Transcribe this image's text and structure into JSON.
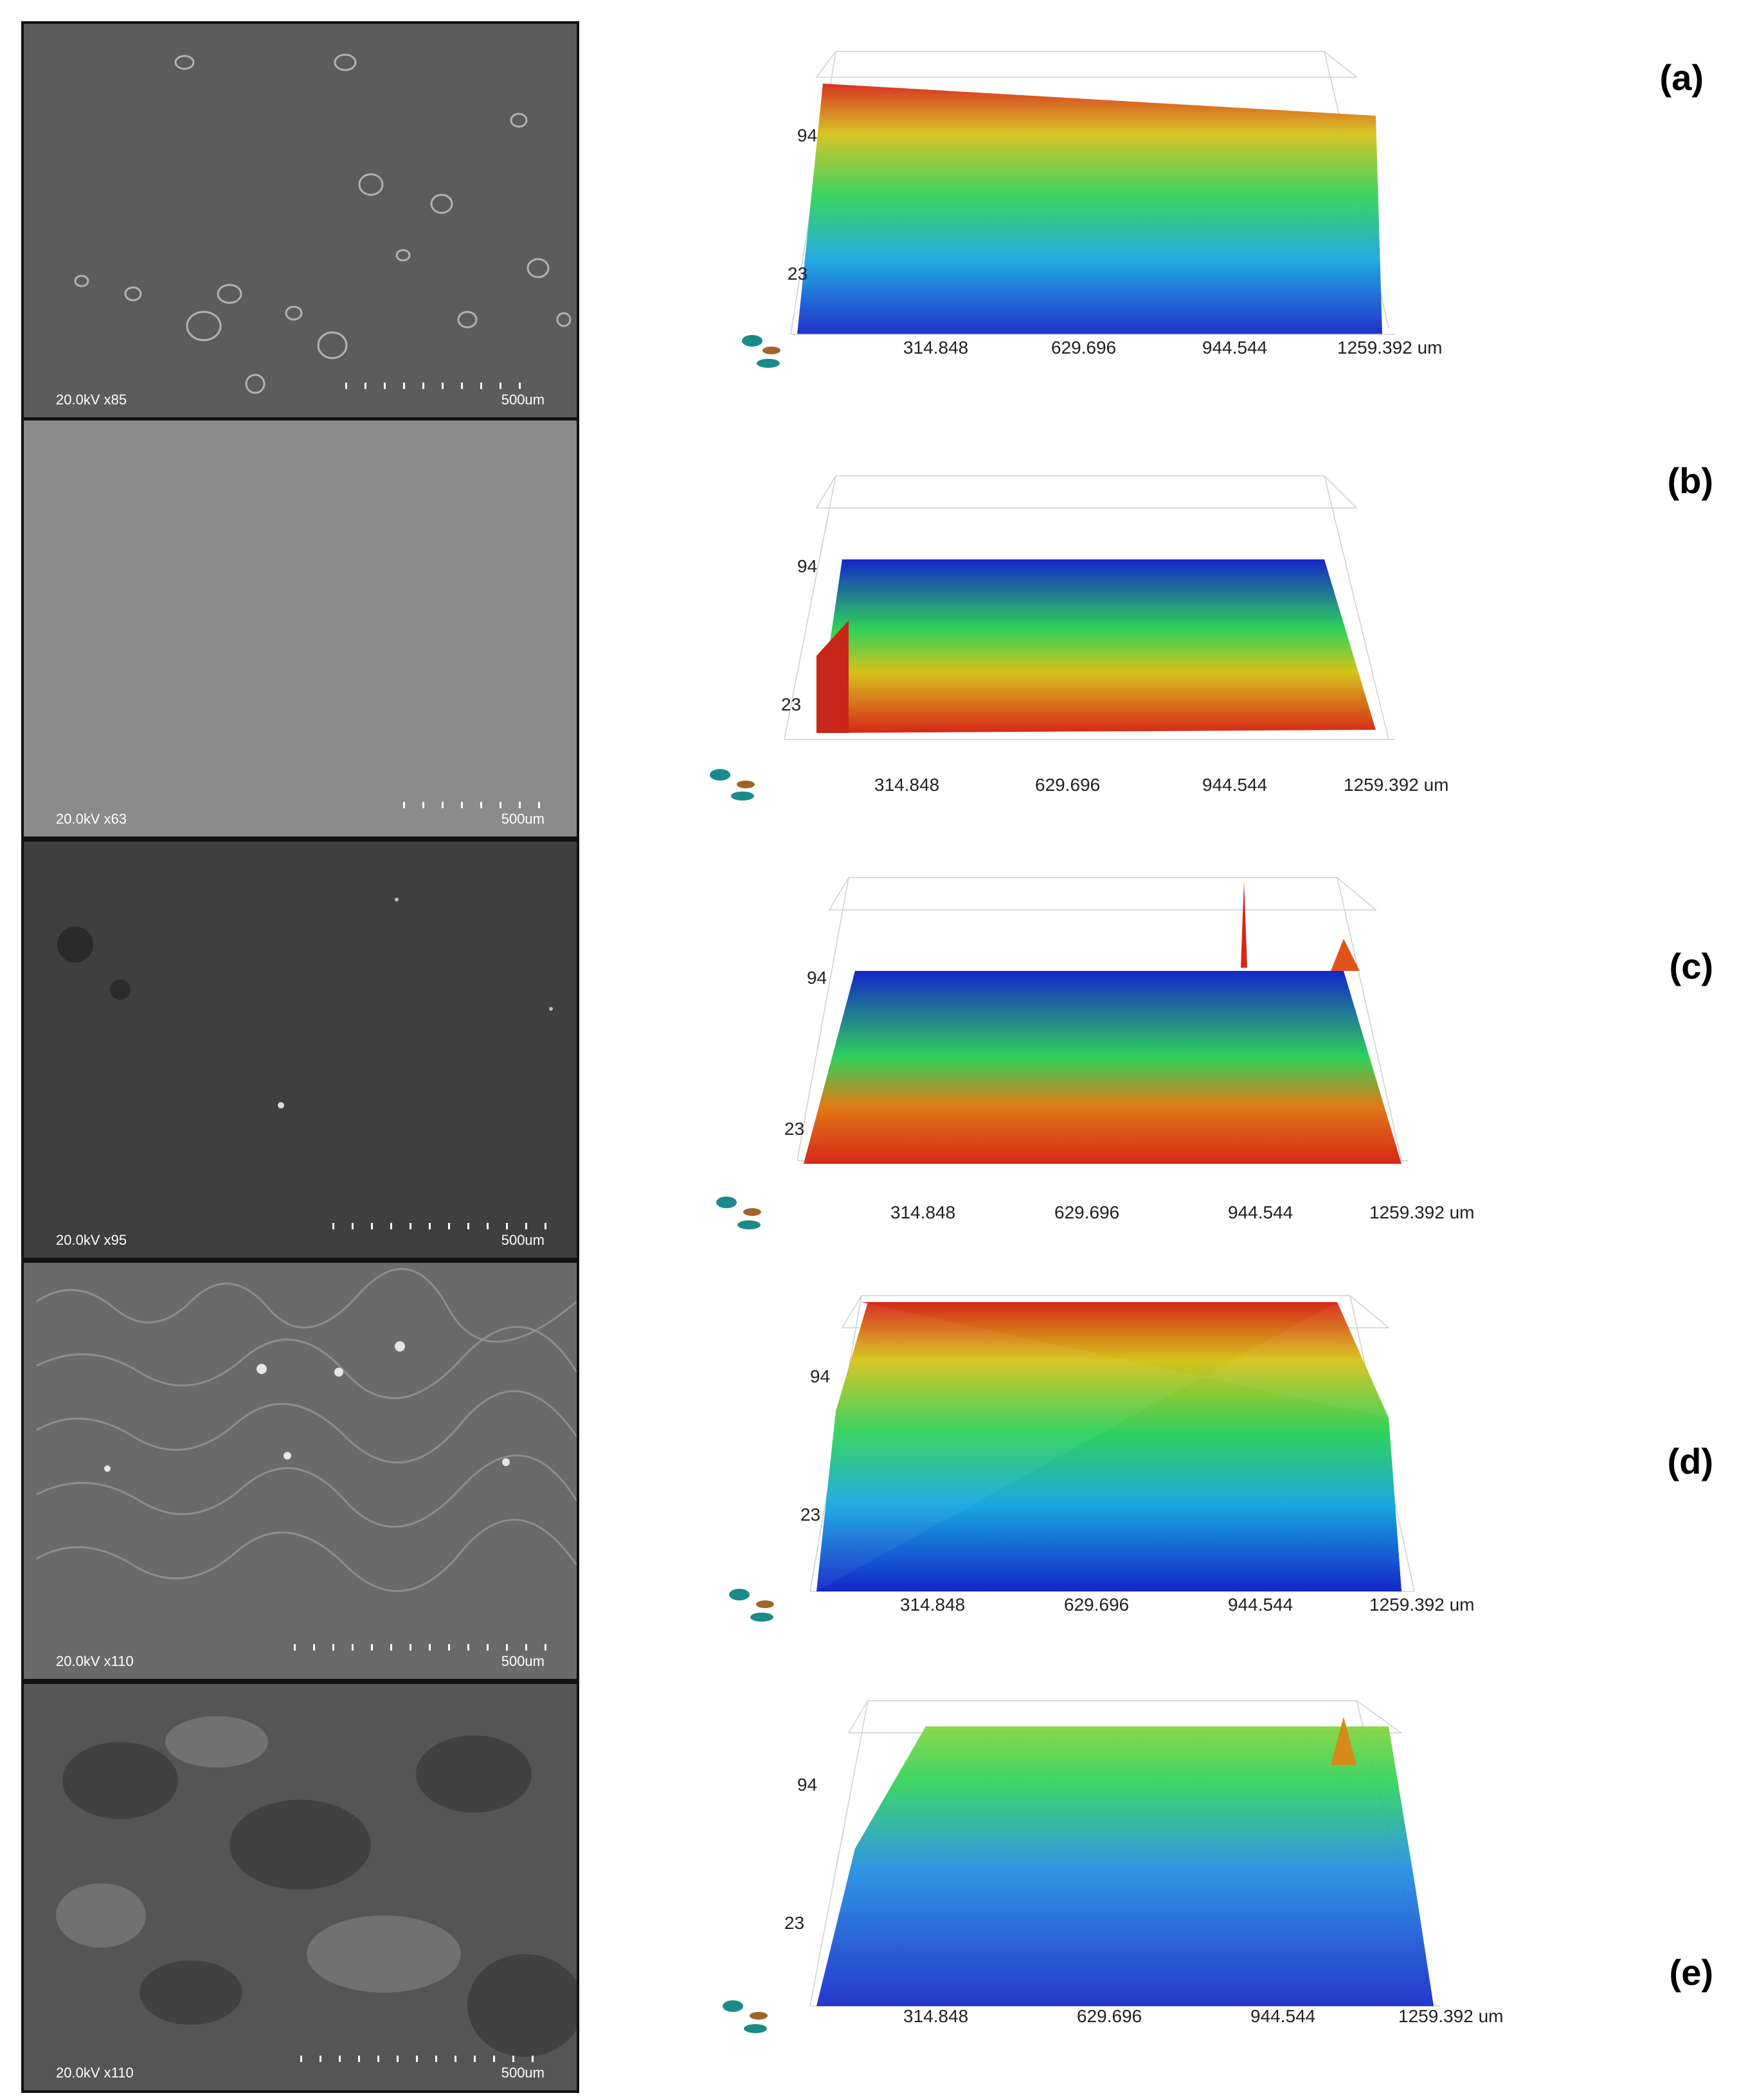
{
  "panels": [
    {
      "tag": "(a)",
      "sem_info": "20.0kV x85",
      "sem_scale": "500um",
      "z_top": "94",
      "z_bottom": "23",
      "x_ticks": [
        "314.848",
        "629.696",
        "944.544",
        "1259.392 um"
      ]
    },
    {
      "tag": "(b)",
      "sem_info": "20.0kV x63",
      "sem_scale": "500um",
      "z_top": "94",
      "z_bottom": "23",
      "x_ticks": [
        "314.848",
        "629.696",
        "944.544",
        "1259.392 um"
      ]
    },
    {
      "tag": "(c)",
      "sem_info": "20.0kV x95",
      "sem_scale": "500um",
      "z_top": "94",
      "z_bottom": "23",
      "x_ticks": [
        "314.848",
        "629.696",
        "944.544",
        "1259.392 um"
      ]
    },
    {
      "tag": "(d)",
      "sem_info": "20.0kV x110",
      "sem_scale": "500um",
      "z_top": "94",
      "z_bottom": "23",
      "x_ticks": [
        "314.848",
        "629.696",
        "944.544",
        "1259.392 um"
      ]
    },
    {
      "tag": "(e)",
      "sem_info": "20.0kV x110",
      "sem_scale": "500um",
      "z_top": "94",
      "z_bottom": "23",
      "x_ticks": [
        "314.848",
        "629.696",
        "944.544",
        "1259.392 um"
      ]
    }
  ],
  "colors": {
    "high": "#d62718",
    "mid": "#2fd15a",
    "low": "#1326c9"
  }
}
